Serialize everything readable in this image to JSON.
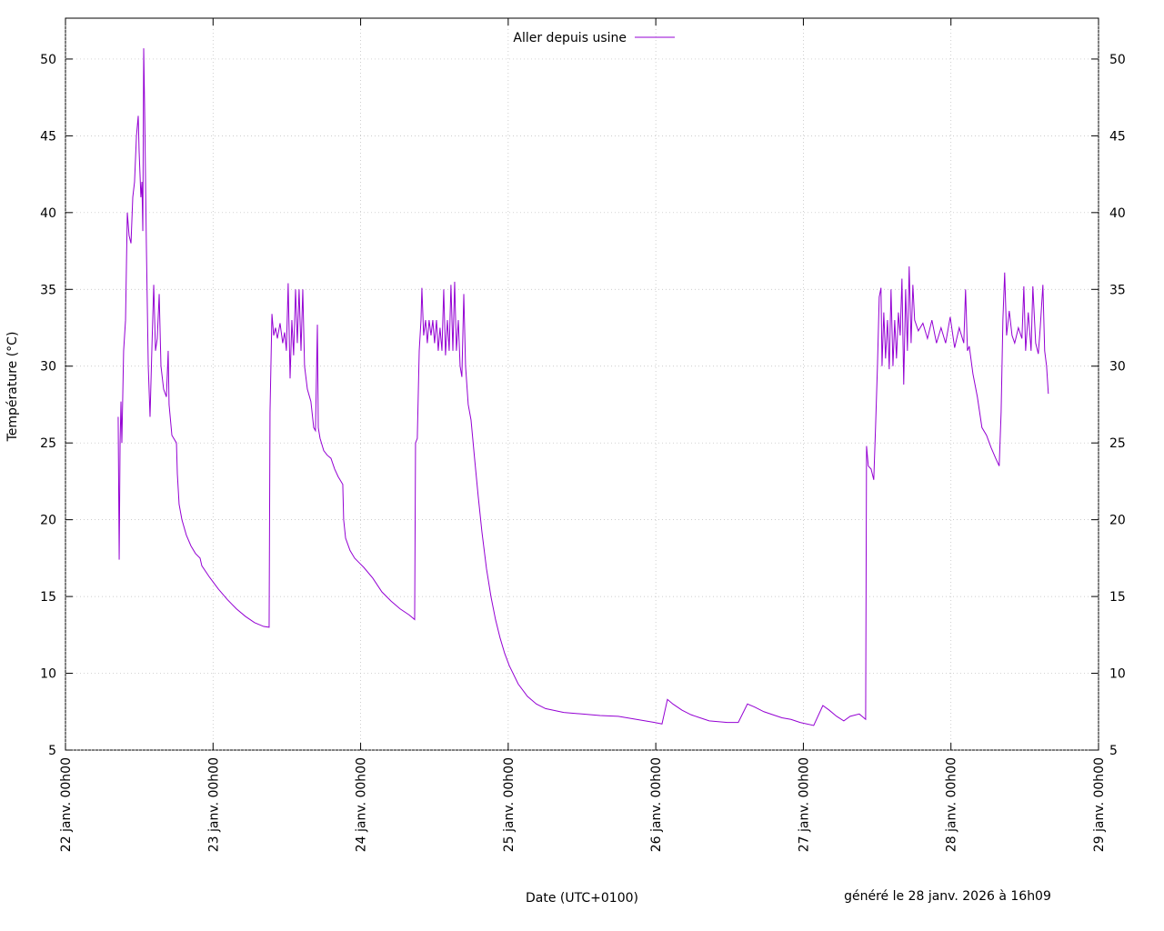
{
  "chart_data": {
    "type": "line",
    "xlabel": "Date (UTC+0100)",
    "ylabel": "Température (°C)",
    "annotation": "généré le 28 janv. 2026 à 16h09",
    "legend": "top",
    "grid": true,
    "xlim": [
      0,
      7
    ],
    "xticks": [
      {
        "value": 0,
        "label": "22 janv. 00h00"
      },
      {
        "value": 1,
        "label": "23 janv. 00h00"
      },
      {
        "value": 2,
        "label": "24 janv. 00h00"
      },
      {
        "value": 3,
        "label": "25 janv. 00h00"
      },
      {
        "value": 4,
        "label": "26 janv. 00h00"
      },
      {
        "value": 5,
        "label": "27 janv. 00h00"
      },
      {
        "value": 6,
        "label": "28 janv. 00h00"
      },
      {
        "value": 7,
        "label": "29 janv. 00h00"
      }
    ],
    "ylim": [
      5,
      52.66
    ],
    "yticks": [
      5,
      10,
      15,
      20,
      25,
      30,
      35,
      40,
      45,
      50
    ],
    "x": [
      0.357,
      0.364,
      0.37,
      0.376,
      0.382,
      0.394,
      0.407,
      0.413,
      0.419,
      0.431,
      0.444,
      0.456,
      0.468,
      0.481,
      0.493,
      0.499,
      0.511,
      0.518,
      0.524,
      0.53,
      0.536,
      0.548,
      0.561,
      0.573,
      0.585,
      0.598,
      0.61,
      0.622,
      0.635,
      0.647,
      0.665,
      0.684,
      0.696,
      0.702,
      0.721,
      0.752,
      0.758,
      0.77,
      0.789,
      0.819,
      0.85,
      0.881,
      0.912,
      0.924,
      0.973,
      1.035,
      1.097,
      1.158,
      1.22,
      1.281,
      1.343,
      1.38,
      1.386,
      1.399,
      1.411,
      1.423,
      1.436,
      1.454,
      1.472,
      1.485,
      1.497,
      1.509,
      1.522,
      1.534,
      1.546,
      1.559,
      1.571,
      1.583,
      1.596,
      1.608,
      1.62,
      1.639,
      1.663,
      1.682,
      1.694,
      1.707,
      1.713,
      1.725,
      1.75,
      1.774,
      1.799,
      1.824,
      1.848,
      1.879,
      1.885,
      1.898,
      1.928,
      1.959,
      1.99,
      2.021,
      2.082,
      2.144,
      2.206,
      2.267,
      2.329,
      2.366,
      2.372,
      2.384,
      2.397,
      2.409,
      2.415,
      2.427,
      2.44,
      2.452,
      2.464,
      2.477,
      2.489,
      2.501,
      2.514,
      2.526,
      2.538,
      2.551,
      2.563,
      2.575,
      2.588,
      2.6,
      2.612,
      2.625,
      2.637,
      2.649,
      2.662,
      2.674,
      2.686,
      2.699,
      2.711,
      2.729,
      2.748,
      2.772,
      2.797,
      2.822,
      2.853,
      2.883,
      2.914,
      2.945,
      2.976,
      3.007,
      3.068,
      3.13,
      3.191,
      3.253,
      3.376,
      3.499,
      3.623,
      3.746,
      3.869,
      3.992,
      4.042,
      4.079,
      4.116,
      4.177,
      4.239,
      4.3,
      4.362,
      4.485,
      4.559,
      4.621,
      4.67,
      4.732,
      4.793,
      4.855,
      4.916,
      4.978,
      5.07,
      5.132,
      5.175,
      5.225,
      5.274,
      5.317,
      5.379,
      5.422,
      5.428,
      5.44,
      5.459,
      5.477,
      5.489,
      5.502,
      5.514,
      5.526,
      5.533,
      5.545,
      5.557,
      5.57,
      5.582,
      5.594,
      5.607,
      5.619,
      5.631,
      5.644,
      5.656,
      5.668,
      5.68,
      5.693,
      5.705,
      5.717,
      5.73,
      5.742,
      5.754,
      5.779,
      5.81,
      5.841,
      5.871,
      5.902,
      5.933,
      5.964,
      5.995,
      6.025,
      6.056,
      6.087,
      6.099,
      6.112,
      6.124,
      6.149,
      6.179,
      6.21,
      6.241,
      6.272,
      6.303,
      6.327,
      6.34,
      6.352,
      6.364,
      6.377,
      6.395,
      6.414,
      6.432,
      6.457,
      6.481,
      6.494,
      6.506,
      6.524,
      6.543,
      6.555,
      6.574,
      6.592,
      6.605,
      6.623,
      6.635,
      6.648,
      6.66
    ],
    "series": [
      {
        "name": "Aller depuis usine",
        "color": "#9400d3",
        "values": [
          26.7,
          17.4,
          25,
          27.7,
          25,
          31,
          33,
          36.5,
          40,
          38.5,
          38,
          41,
          42,
          45,
          46.3,
          44,
          41,
          42,
          38.8,
          50.7,
          47,
          38,
          30,
          26.7,
          31,
          35.3,
          31,
          31.8,
          34.7,
          30,
          28.5,
          28,
          31,
          27.5,
          25.5,
          25,
          23,
          21,
          20,
          19,
          18.3,
          17.8,
          17.5,
          17,
          16.3,
          15.5,
          14.8,
          14.2,
          13.7,
          13.3,
          13.05,
          13,
          27,
          33.4,
          32,
          32.5,
          31.8,
          32.8,
          31.5,
          32.2,
          31,
          35.4,
          29.2,
          33,
          30.7,
          35,
          31.5,
          35,
          31,
          35,
          30,
          28.5,
          27.7,
          26,
          25.8,
          32.7,
          26,
          25.3,
          24.5,
          24.2,
          24,
          23.3,
          22.8,
          22.3,
          20,
          18.8,
          18,
          17.5,
          17.2,
          16.9,
          16.2,
          15.3,
          14.7,
          14.2,
          13.8,
          13.5,
          25,
          25.3,
          31,
          33,
          35.1,
          32,
          33,
          31.5,
          33,
          32,
          33,
          31.5,
          33,
          31,
          32.5,
          31,
          35,
          30.7,
          33,
          31,
          35.3,
          31,
          35.5,
          31,
          33,
          30,
          29.3,
          34.7,
          30,
          27.5,
          26.5,
          24,
          21.5,
          19.2,
          16.8,
          15,
          13.5,
          12.3,
          11.3,
          10.5,
          9.3,
          8.5,
          8,
          7.7,
          7.45,
          7.35,
          7.25,
          7.2,
          7,
          6.8,
          6.7,
          8.3,
          8,
          7.6,
          7.3,
          7.1,
          6.9,
          6.8,
          6.8,
          8,
          7.8,
          7.5,
          7.3,
          7.1,
          7,
          6.8,
          6.6,
          7.9,
          7.6,
          7.2,
          6.9,
          7.2,
          7.35,
          7,
          24.8,
          23.5,
          23.3,
          22.6,
          26,
          30,
          34.5,
          35.1,
          30,
          33.5,
          30.5,
          33,
          29.8,
          35,
          30,
          33,
          30.5,
          33.5,
          32,
          35.7,
          28.8,
          35,
          31,
          36.5,
          31.5,
          35.3,
          33,
          32.3,
          32.8,
          31.8,
          33,
          31.5,
          32.5,
          31.5,
          33.2,
          31.2,
          32.5,
          31.5,
          35,
          31,
          31.3,
          29.5,
          28,
          26,
          25.5,
          24.7,
          24,
          23.5,
          27,
          33,
          36.1,
          32,
          33.6,
          32,
          31.5,
          32.5,
          31.8,
          35.2,
          31,
          33.5,
          31,
          35.2,
          31.5,
          30.8,
          32.5,
          35.3,
          31,
          30,
          28.2
        ]
      }
    ]
  }
}
